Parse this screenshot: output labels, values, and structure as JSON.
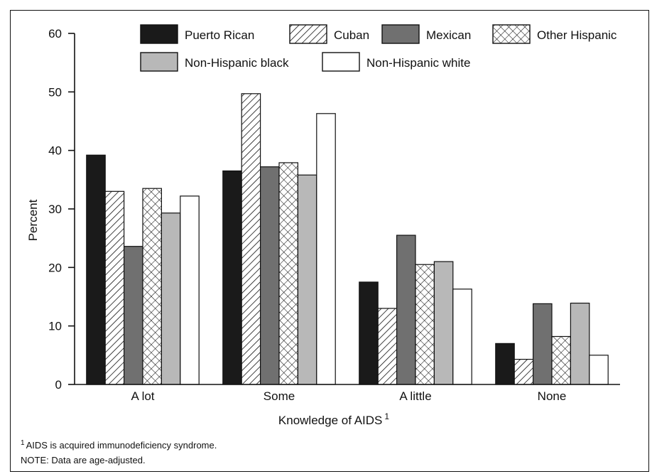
{
  "chart_data": {
    "type": "bar",
    "title": "",
    "xlabel": "Knowledge of AIDS",
    "xlabel_sup": "1",
    "ylabel": "Percent",
    "ylim": [
      0,
      60
    ],
    "yticks": [
      "0",
      "10",
      "20",
      "30",
      "40",
      "50",
      "60"
    ],
    "categories": [
      "A lot",
      "Some",
      "A little",
      "None"
    ],
    "legend_position": "top",
    "series": [
      {
        "name": "Puerto Rican",
        "values": [
          39.2,
          36.5,
          17.5,
          7.0
        ],
        "fill": "#1a1a1a",
        "pattern": "solid"
      },
      {
        "name": "Cuban",
        "values": [
          33.0,
          49.7,
          13.0,
          4.3
        ],
        "fill": "#ffffff",
        "pattern": "diagonal-hatch"
      },
      {
        "name": "Mexican",
        "values": [
          23.6,
          37.2,
          25.5,
          13.8
        ],
        "fill": "#707070",
        "pattern": "solid"
      },
      {
        "name": "Other Hispanic",
        "values": [
          33.5,
          37.9,
          20.5,
          8.2
        ],
        "fill": "#ffffff",
        "pattern": "cross-hatch"
      },
      {
        "name": "Non-Hispanic black",
        "values": [
          29.3,
          35.8,
          21.0,
          13.9
        ],
        "fill": "#b8b8b8",
        "pattern": "solid"
      },
      {
        "name": "Non-Hispanic white",
        "values": [
          32.2,
          46.3,
          16.3,
          5.0
        ],
        "fill": "#ffffff",
        "pattern": "solid"
      }
    ]
  },
  "footnotes": {
    "note1_sup": "1",
    "note1": "AIDS is acquired immunodeficiency syndrome.",
    "note2": "NOTE: Data are age-adjusted."
  }
}
